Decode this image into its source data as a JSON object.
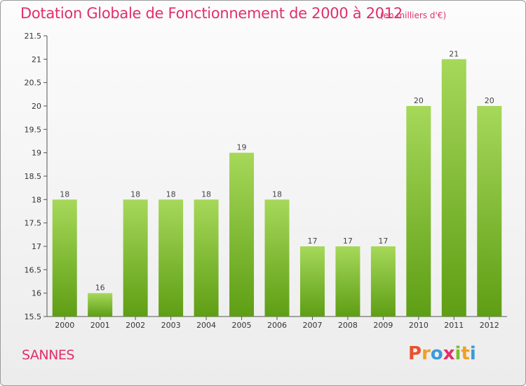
{
  "header": {
    "title": "Dotation Globale de Fonctionnement de 2000 à 2012",
    "subtitle": "(en milliers d'€)"
  },
  "footer": {
    "commune": "SANNES",
    "logo_letters": [
      "P",
      "r",
      "o",
      "x",
      "i",
      "t",
      "i"
    ],
    "logo_colors": [
      "#e8502f",
      "#f0a020",
      "#3a9ad9",
      "#e0306a",
      "#7cbf2a",
      "#f0a020",
      "#3a9ad9"
    ]
  },
  "colors": {
    "bar_top": "#a6d85a",
    "bar_bottom": "#5e9e14",
    "axis": "#555555",
    "title": "#e0306a"
  },
  "chart_data": {
    "type": "bar",
    "title": "Dotation Globale de Fonctionnement de 2000 à 2012",
    "subtitle": "(en milliers d'€)",
    "xlabel": "",
    "ylabel": "",
    "categories": [
      "2000",
      "2001",
      "2002",
      "2003",
      "2004",
      "2005",
      "2006",
      "2007",
      "2008",
      "2009",
      "2010",
      "2011",
      "2012"
    ],
    "values": [
      18,
      16,
      18,
      18,
      18,
      19,
      18,
      17,
      17,
      17,
      20,
      21,
      20
    ],
    "value_labels": [
      "18",
      "16",
      "18",
      "18",
      "18",
      "19",
      "18",
      "17",
      "17",
      "17",
      "20",
      "21",
      "20"
    ],
    "ylim": [
      15.5,
      21.5
    ],
    "yticks": [
      15.5,
      16,
      16.5,
      17,
      17.5,
      18,
      18.5,
      19,
      19.5,
      20,
      20.5,
      21,
      21.5
    ],
    "ytick_labels": [
      "15.5",
      "16",
      "16.5",
      "17",
      "17.5",
      "18",
      "18.5",
      "19",
      "19.5",
      "20",
      "20.5",
      "21",
      "21.5"
    ],
    "grid": false
  }
}
